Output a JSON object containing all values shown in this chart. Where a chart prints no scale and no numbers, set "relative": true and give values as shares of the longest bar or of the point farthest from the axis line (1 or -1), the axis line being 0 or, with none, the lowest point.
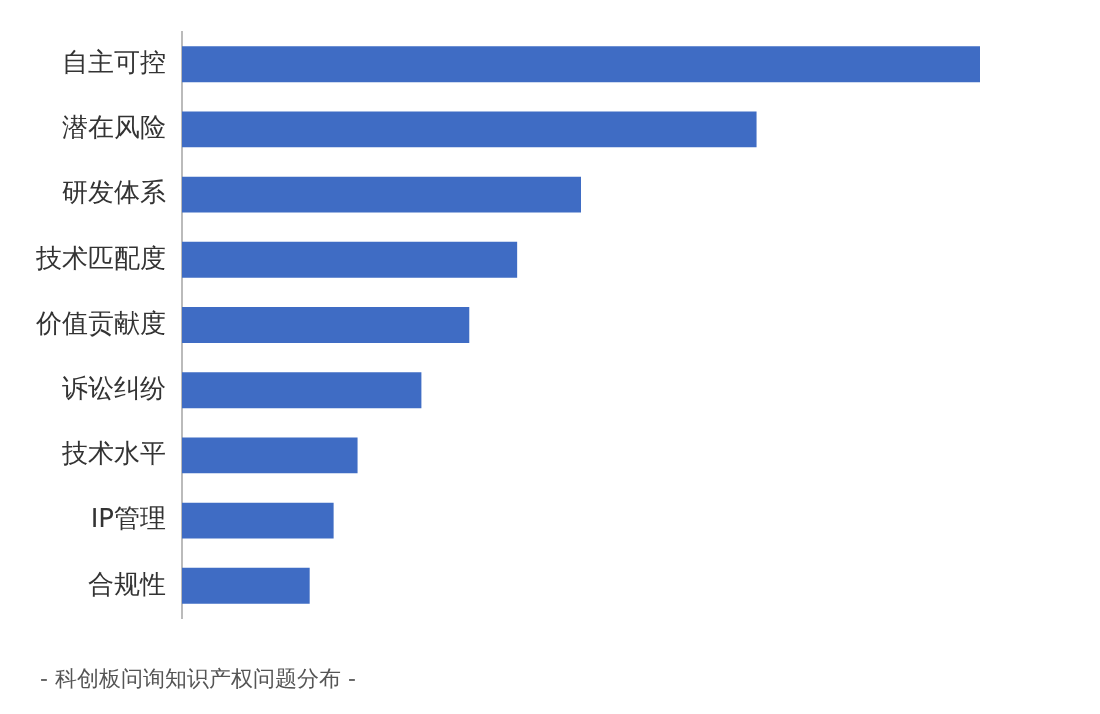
{
  "chart_data": {
    "type": "bar",
    "orientation": "horizontal",
    "relative": true,
    "categories": [
      "自主可控",
      "潜在风险",
      "研发体系",
      "技术匹配度",
      "价值贡献度",
      "诉讼纠纷",
      "技术水平",
      "IP管理",
      "合规性"
    ],
    "values": [
      1,
      0.72,
      0.5,
      0.42,
      0.36,
      0.3,
      0.22,
      0.19,
      0.16
    ],
    "color": "#3f6cc4",
    "annotations": [
      "- 科创板问询知识产权问题分布 -"
    ]
  }
}
